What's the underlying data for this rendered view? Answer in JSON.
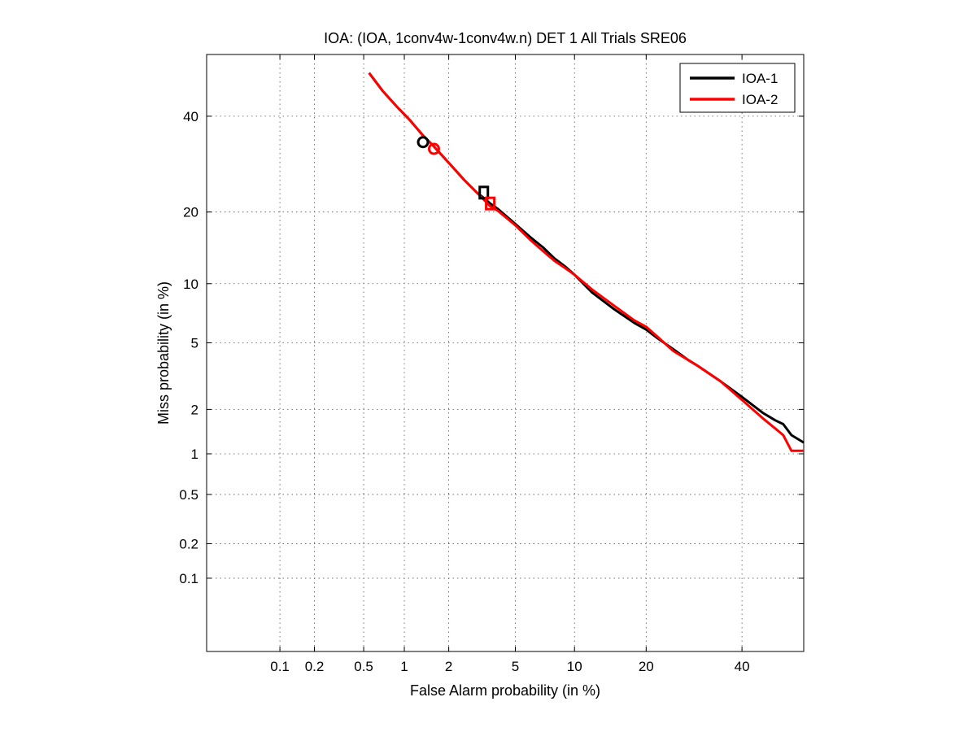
{
  "chart_data": {
    "type": "line",
    "title": "IOA: (IOA, 1conv4w-1conv4w.n) DET 1 All Trials SRE06",
    "xlabel": "False Alarm probability (in %)",
    "ylabel": "Miss probability (in %)",
    "x_scale": "probit",
    "y_scale": "probit",
    "xlim": [
      0.02,
      55
    ],
    "ylim": [
      0.02,
      55
    ],
    "grid": true,
    "legend_position": "top-right",
    "x_ticks": [
      0.1,
      0.2,
      0.5,
      1,
      2,
      5,
      10,
      20,
      40
    ],
    "x_tick_labels": [
      "0.1",
      "0.2",
      "0.5",
      "1",
      "2",
      "5",
      "10",
      "20",
      "40"
    ],
    "y_ticks": [
      0.1,
      0.2,
      0.5,
      1,
      2,
      5,
      10,
      20,
      40
    ],
    "y_tick_labels": [
      "0.1",
      "0.2",
      "0.5",
      "1",
      "2",
      "5",
      "10",
      "20",
      "40"
    ],
    "series": [
      {
        "name": "IOA-1",
        "color": "#000000",
        "x": [
          0.55,
          0.7,
          0.9,
          1.1,
          1.35,
          1.6,
          2.0,
          2.5,
          3.0,
          3.3,
          3.6,
          4.0,
          5.0,
          6.0,
          7.0,
          8.0,
          9.0,
          10.0,
          12.0,
          15.0,
          18.0,
          20.0,
          22.0,
          25.0,
          28.0,
          30.0,
          35.0,
          40.0,
          45.0,
          48.0,
          50.0,
          52.0,
          55.0
        ],
        "y": [
          50.5,
          46.0,
          42.0,
          39.0,
          35.5,
          33.0,
          29.5,
          26.0,
          23.5,
          22.5,
          21.5,
          20.5,
          18.0,
          16.0,
          14.5,
          13.0,
          12.0,
          11.0,
          9.1,
          7.5,
          6.4,
          5.9,
          5.3,
          4.6,
          4.0,
          3.7,
          3.0,
          2.4,
          1.9,
          1.7,
          1.6,
          1.35,
          1.2
        ],
        "marker_circle": [
          1.35,
          34.0
        ],
        "marker_square": [
          3.3,
          23.5
        ]
      },
      {
        "name": "IOA-2",
        "color": "#ff0000",
        "x": [
          0.55,
          0.7,
          0.9,
          1.1,
          1.35,
          1.6,
          2.0,
          2.5,
          3.0,
          3.3,
          3.6,
          4.0,
          5.0,
          6.0,
          7.0,
          8.0,
          9.0,
          10.0,
          12.0,
          15.0,
          18.0,
          20.0,
          22.0,
          25.0,
          28.0,
          30.0,
          35.0,
          40.0,
          45.0,
          48.0,
          50.0,
          52.0,
          55.0
        ],
        "y": [
          50.5,
          46.0,
          42.0,
          39.0,
          35.5,
          33.0,
          29.5,
          26.0,
          23.5,
          22.2,
          21.0,
          20.2,
          17.8,
          15.6,
          14.0,
          12.7,
          11.8,
          11.0,
          9.4,
          7.8,
          6.6,
          6.1,
          5.4,
          4.5,
          4.0,
          3.7,
          3.0,
          2.3,
          1.75,
          1.5,
          1.35,
          1.05,
          1.05
        ],
        "marker_circle": [
          1.6,
          32.5
        ],
        "marker_square": [
          3.6,
          21.5
        ]
      }
    ]
  }
}
